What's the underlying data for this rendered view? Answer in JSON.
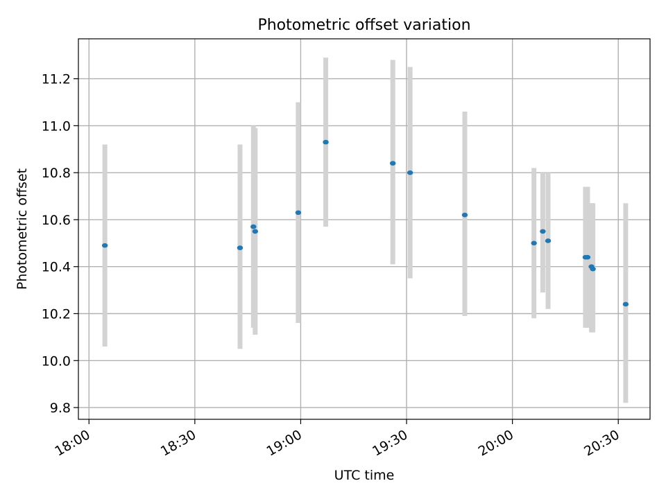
{
  "chart_data": {
    "type": "scatter",
    "title": "Photometric offset variation",
    "xlabel": "UTC time",
    "ylabel": "Photometric offset",
    "x_axis": {
      "kind": "time",
      "range": [
        "17:57",
        "20:39"
      ],
      "ticks": [
        "18:00",
        "18:30",
        "19:00",
        "19:30",
        "20:00",
        "20:30"
      ]
    },
    "y_axis": {
      "range": [
        9.75,
        11.37
      ],
      "ticks": [
        "9.8",
        "10.0",
        "10.2",
        "10.4",
        "10.6",
        "10.8",
        "11.0",
        "11.2"
      ]
    },
    "grid": true,
    "legend": "none",
    "series": [
      {
        "marker_color": "#1f77b4",
        "error_bar_color": "#d3d3d3",
        "points": [
          {
            "time": "18:04.5",
            "y": 10.49,
            "low": 10.06,
            "high": 10.92
          },
          {
            "time": "18:42.8",
            "y": 10.48,
            "low": 10.05,
            "high": 10.92
          },
          {
            "time": "18:46.6",
            "y": 10.57,
            "low": 10.14,
            "high": 11.0
          },
          {
            "time": "18:47.1",
            "y": 10.55,
            "low": 10.11,
            "high": 10.99
          },
          {
            "time": "18:59.3",
            "y": 10.63,
            "low": 10.16,
            "high": 11.1
          },
          {
            "time": "19:07.1",
            "y": 10.93,
            "low": 10.57,
            "high": 11.29
          },
          {
            "time": "19:26.1",
            "y": 10.84,
            "low": 10.41,
            "high": 11.28
          },
          {
            "time": "19:31.0",
            "y": 10.8,
            "low": 10.35,
            "high": 11.25
          },
          {
            "time": "19:46.5",
            "y": 10.62,
            "low": 10.19,
            "high": 11.06
          },
          {
            "time": "20:06.1",
            "y": 10.5,
            "low": 10.18,
            "high": 10.82
          },
          {
            "time": "20:08.6",
            "y": 10.55,
            "low": 10.29,
            "high": 10.8
          },
          {
            "time": "20:10.1",
            "y": 10.51,
            "low": 10.22,
            "high": 10.8
          },
          {
            "time": "20:20.7",
            "y": 10.44,
            "low": 10.14,
            "high": 10.74
          },
          {
            "time": "20:21.3",
            "y": 10.44,
            "low": 10.14,
            "high": 10.74
          },
          {
            "time": "20:22.4",
            "y": 10.4,
            "low": 10.12,
            "high": 10.67
          },
          {
            "time": "20:22.8",
            "y": 10.39,
            "low": 10.12,
            "high": 10.67
          },
          {
            "time": "20:32.1",
            "y": 10.24,
            "low": 9.82,
            "high": 10.67
          }
        ]
      }
    ]
  }
}
